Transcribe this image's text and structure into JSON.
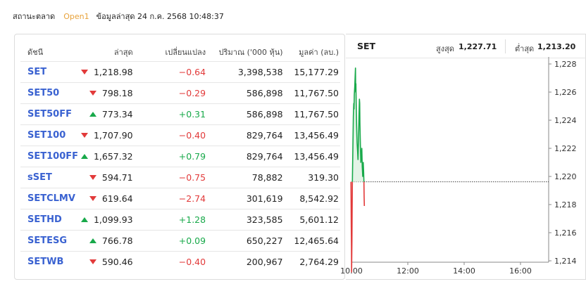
{
  "status": {
    "label": "สถานะตลาด",
    "state": "Open1",
    "updated": "ข้อมูลล่าสุด 24 ก.ค. 2568 10:48:37",
    "state_color": "#e8a23a"
  },
  "table": {
    "headers": {
      "name": "ดัชนี",
      "last": "ล่าสุด",
      "change": "เปลี่ยนแปลง",
      "volume": "ปริมาณ ('000 หุ้น)",
      "value": "มูลค่า (ลบ.)"
    },
    "rows": [
      {
        "name": "SET",
        "direction": "down",
        "last": "1,218.98",
        "change": "-0.64",
        "volume": "3,398,538",
        "value": "15,177.29"
      },
      {
        "name": "SET50",
        "direction": "down",
        "last": "798.18",
        "change": "-0.29",
        "volume": "586,898",
        "value": "11,767.50"
      },
      {
        "name": "SET50FF",
        "direction": "up",
        "last": "773.34",
        "change": "+0.31",
        "volume": "586,898",
        "value": "11,767.50"
      },
      {
        "name": "SET100",
        "direction": "down",
        "last": "1,707.90",
        "change": "-0.40",
        "volume": "829,764",
        "value": "13,456.49"
      },
      {
        "name": "SET100FF",
        "direction": "up",
        "last": "1,657.32",
        "change": "+0.79",
        "volume": "829,764",
        "value": "13,456.49"
      },
      {
        "name": "sSET",
        "direction": "down",
        "last": "594.71",
        "change": "-0.75",
        "volume": "78,882",
        "value": "319.30"
      },
      {
        "name": "SETCLMV",
        "direction": "down",
        "last": "619.64",
        "change": "-2.74",
        "volume": "301,619",
        "value": "8,542.92"
      },
      {
        "name": "SETHD",
        "direction": "up",
        "last": "1,099.93",
        "change": "+1.28",
        "volume": "323,585",
        "value": "5,601.12"
      },
      {
        "name": "SETESG",
        "direction": "up",
        "last": "766.78",
        "change": "+0.09",
        "volume": "650,227",
        "value": "12,465.64"
      },
      {
        "name": "SETWB",
        "direction": "down",
        "last": "590.46",
        "change": "-0.40",
        "volume": "200,967",
        "value": "2,764.29"
      }
    ],
    "colors": {
      "name": "#3a62d1",
      "up": "#18a94a",
      "down": "#e23a3a"
    }
  },
  "chart_header": {
    "name": "SET",
    "high_label": "สูงสุด",
    "high_value": "1,227.71",
    "low_label": "ต่ำสุด",
    "low_value": "1,213.20"
  },
  "chart_data": {
    "type": "area",
    "series_name": "SET",
    "x_ticks": [
      "10:00",
      "12:00",
      "14:00",
      "16:00"
    ],
    "x_tick_minutes": [
      600,
      720,
      840,
      960
    ],
    "xlim_minutes": [
      600,
      1020
    ],
    "y_ticks": [
      "1,228",
      "1,226",
      "1,224",
      "1,222",
      "1,220",
      "1,218",
      "1,216",
      "1,214"
    ],
    "ylim": [
      1214,
      1228
    ],
    "previous_close": 1219.62,
    "high": 1227.71,
    "low": 1213.2,
    "grid": false,
    "points": [
      [
        599,
        1219.62
      ],
      [
        599.5,
        1216.5
      ],
      [
        600,
        1215.0
      ],
      [
        600.3,
        1213.2
      ],
      [
        601,
        1215.5
      ],
      [
        601.5,
        1217.8
      ],
      [
        601.9,
        1219.62
      ],
      [
        603,
        1222.0
      ],
      [
        604,
        1224.3
      ],
      [
        605,
        1225.2
      ],
      [
        605.5,
        1224.8
      ],
      [
        606,
        1225.8
      ],
      [
        607,
        1226.4
      ],
      [
        608,
        1227.2
      ],
      [
        608.5,
        1227.71
      ],
      [
        609,
        1226.0
      ],
      [
        609.5,
        1226.6
      ],
      [
        610,
        1225.3
      ],
      [
        611,
        1223.6
      ],
      [
        612,
        1222.4
      ],
      [
        613,
        1221.8
      ],
      [
        614,
        1221.2
      ],
      [
        615,
        1222.6
      ],
      [
        616,
        1224.3
      ],
      [
        617,
        1225.5
      ],
      [
        617.5,
        1225.2
      ],
      [
        618,
        1223.8
      ],
      [
        619,
        1222.2
      ],
      [
        620,
        1221.0
      ],
      [
        621,
        1221.5
      ],
      [
        622,
        1222.0
      ],
      [
        623,
        1220.7
      ],
      [
        624,
        1220.0
      ],
      [
        625,
        1221.0
      ],
      [
        626,
        1220.3
      ],
      [
        626.5,
        1219.62
      ],
      [
        627,
        1218.5
      ],
      [
        627.5,
        1217.9
      ]
    ],
    "colors": {
      "up": "#18a94a",
      "up_fill": "#e3f3e6",
      "down": "#e23a3a",
      "down_fill": "#fde4e4",
      "baseline": "#444444"
    }
  }
}
